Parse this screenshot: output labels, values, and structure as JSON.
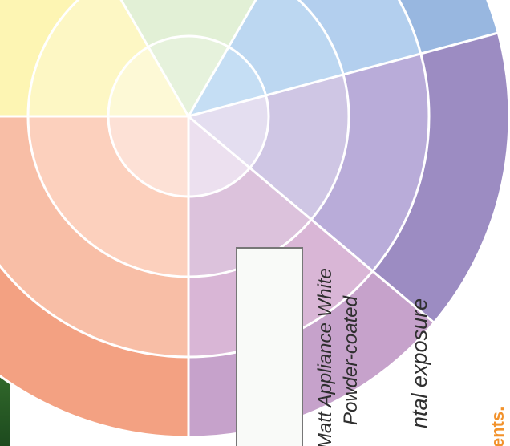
{
  "colour_wheel": {
    "center_color": "#ffffff",
    "segment_colors": {
      "yellow": "#fcf4a6",
      "green": "#d7ebc5",
      "light_blue": "#b9d8ef",
      "blue": "#99b9e1",
      "lavender": "#cfc6e4",
      "purple": "#9e8dc3",
      "mauve": "#c9a6cd",
      "pink": "#dcbcd8",
      "peach": "#fcd4c0",
      "salmon": "#f6a98a",
      "coral": "#f2957a"
    }
  },
  "sample": {
    "swatch_color": "#f9faf8",
    "colour_name": "Matt Appliance White",
    "finish": "Powder-coated"
  },
  "caption": {
    "exposure_fragment": "ntal exposure",
    "footnote_fragment": "ents."
  },
  "colors": {
    "text": "#2f2f2f",
    "accent": "#f2922c",
    "foliage": "#2e6b2a"
  }
}
